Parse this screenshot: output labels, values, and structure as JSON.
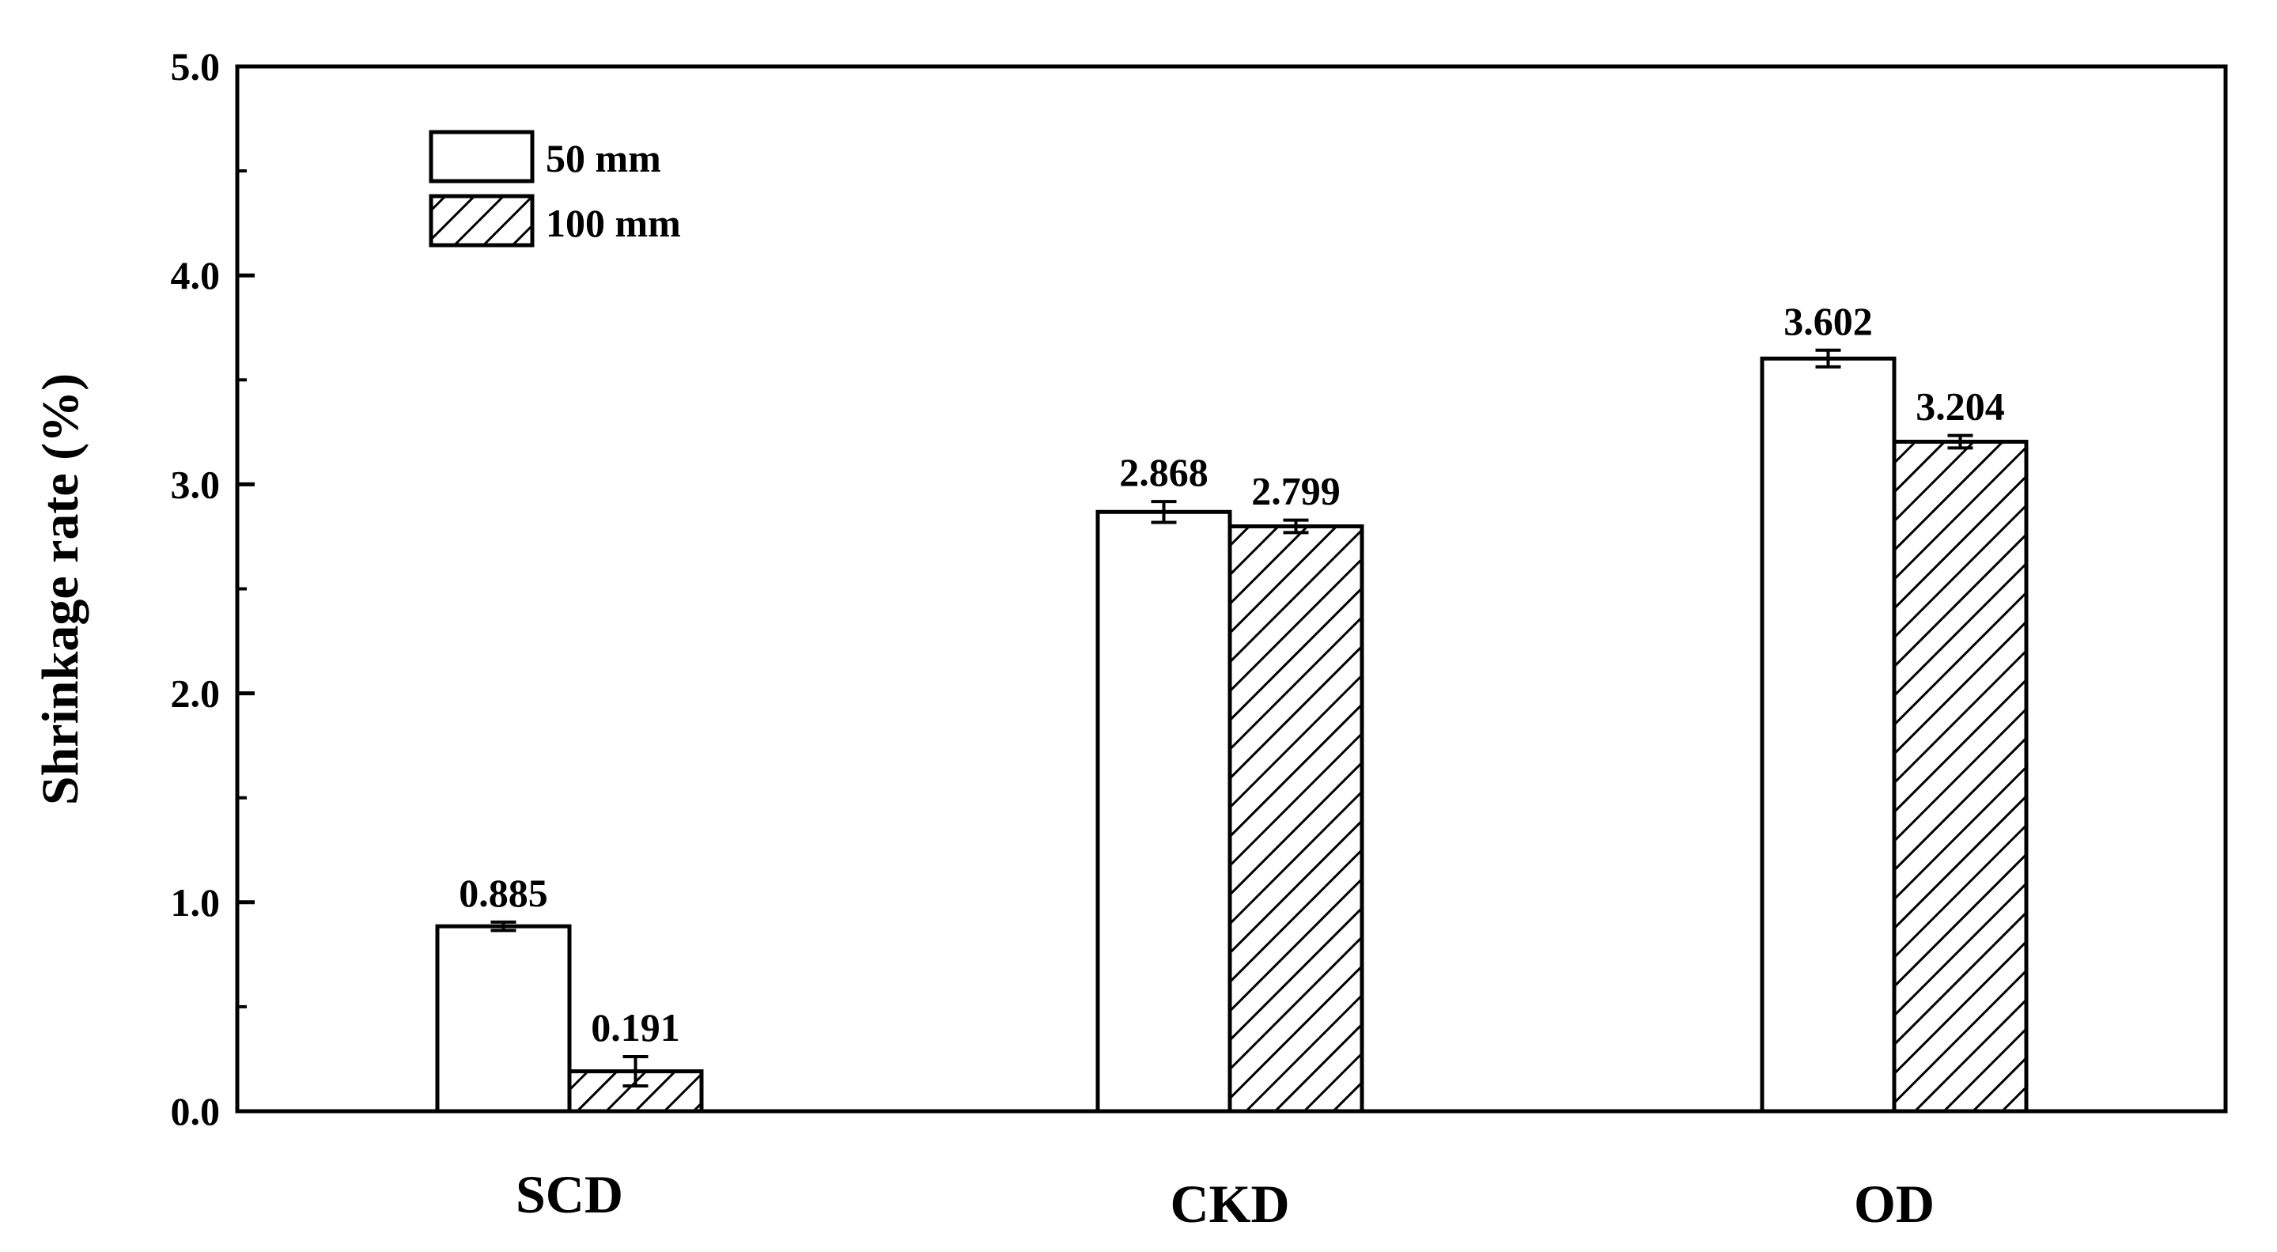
{
  "chart_data": {
    "type": "bar",
    "title": "",
    "xlabel": "",
    "ylabel": "Shrinkage rate (%)",
    "ylim": [
      0,
      5.0
    ],
    "yticks": [
      "0.0",
      "1.0",
      "2.0",
      "3.0",
      "4.0",
      "5.0"
    ],
    "categories": [
      "SCD",
      "CKD",
      "OD"
    ],
    "legend_position": "top-left",
    "grid": false,
    "series": [
      {
        "name": "50 mm",
        "fill": "white",
        "values": [
          0.885,
          2.868,
          3.602
        ],
        "errors": [
          0.02,
          0.05,
          0.04
        ],
        "labels": [
          "0.885",
          "2.868",
          "3.602"
        ]
      },
      {
        "name": "100 mm",
        "fill": "hatched",
        "values": [
          0.191,
          2.799,
          3.204
        ],
        "errors": [
          0.07,
          0.03,
          0.03
        ],
        "labels": [
          "0.191",
          "2.799",
          "3.204"
        ]
      }
    ],
    "colors": {
      "stroke": "#000000",
      "fill": "#ffffff"
    }
  }
}
